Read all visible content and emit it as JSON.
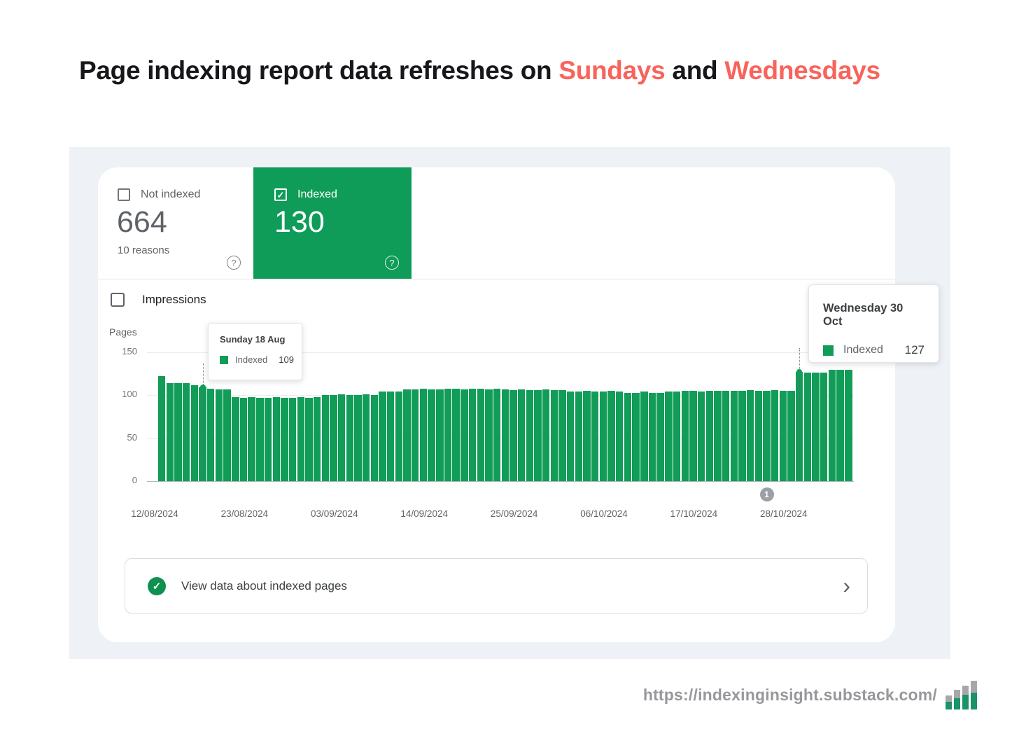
{
  "title": {
    "prefix": "Page indexing report data refreshes on ",
    "highlight1": "Sundays",
    "conjunction": " and ",
    "highlight2": "Wednesdays"
  },
  "summary_tabs": {
    "not_indexed": {
      "label": "Not indexed",
      "count": "664",
      "sub": "10 reasons"
    },
    "indexed": {
      "label": "Indexed",
      "count": "130"
    }
  },
  "impressions": {
    "label": "Impressions"
  },
  "chart_data": {
    "type": "bar",
    "title": "",
    "ylabel": "Pages",
    "ylim": [
      0,
      150
    ],
    "yticks": [
      150,
      100,
      50,
      0
    ],
    "xticks": [
      "12/08/2024",
      "23/08/2024",
      "03/09/2024",
      "14/09/2024",
      "25/09/2024",
      "06/10/2024",
      "17/10/2024",
      "28/10/2024"
    ],
    "grid": true,
    "legend_position": "tooltip",
    "series": [
      {
        "name": "Indexed",
        "color": "#119c58",
        "values": [
          122,
          114,
          114,
          114,
          112,
          109,
          108,
          107,
          107,
          98,
          97,
          98,
          97,
          97,
          98,
          97,
          97,
          98,
          97,
          98,
          100,
          100,
          101,
          100,
          100,
          101,
          100,
          104,
          104,
          104,
          107,
          107,
          108,
          107,
          107,
          108,
          108,
          107,
          108,
          108,
          107,
          108,
          107,
          106,
          107,
          106,
          106,
          107,
          106,
          106,
          104,
          104,
          105,
          104,
          104,
          105,
          104,
          103,
          103,
          104,
          103,
          103,
          104,
          104,
          105,
          105,
          104,
          105,
          105,
          105,
          105,
          105,
          106,
          105,
          105,
          106,
          105,
          105,
          127,
          126,
          126,
          126,
          130,
          130,
          130
        ]
      }
    ],
    "annotation_marker": {
      "label": "1",
      "anchor_day": 74
    }
  },
  "tooltips": [
    {
      "title": "Sunday 18 Aug",
      "series": "Indexed",
      "value": "109",
      "anchor_day": 5
    },
    {
      "title": "Wednesday 30 Oct",
      "series": "Indexed",
      "value": "127",
      "anchor_day": 78
    }
  ],
  "cta": {
    "label": "View data about indexed pages"
  },
  "footer": {
    "url": "https://indexinginsight.substack.com/"
  },
  "icons": {
    "help": "?",
    "check": "✓",
    "chevron_right": "›"
  },
  "colors": {
    "green": "#0f9c58",
    "bar_green": "#119c58",
    "red": "#f8645c",
    "panel_bg": "#eef1f5",
    "marker_gray": "#9aa0a6"
  }
}
